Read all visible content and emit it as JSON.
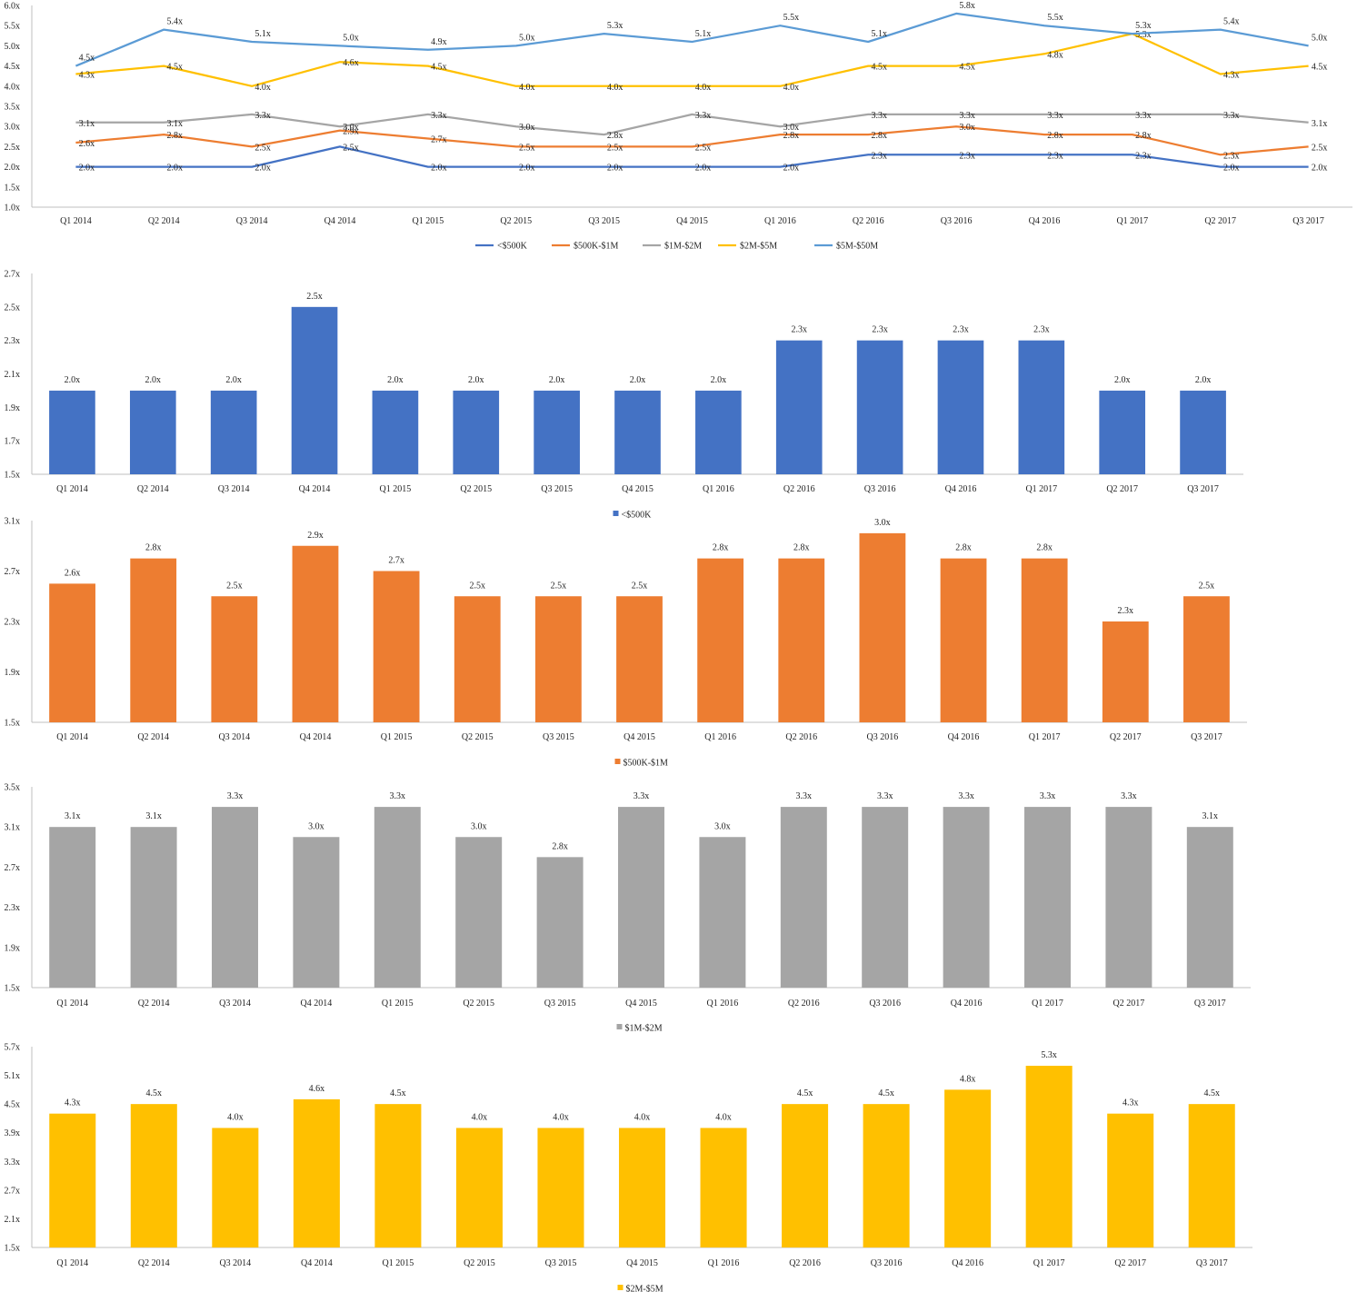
{
  "chart_data": [
    {
      "type": "line",
      "categories": [
        "Q1 2014",
        "Q2 2014",
        "Q3 2014",
        "Q4 2014",
        "Q1 2015",
        "Q2 2015",
        "Q3 2015",
        "Q4 2015",
        "Q1 2016",
        "Q2 2016",
        "Q3 2016",
        "Q4 2016",
        "Q1 2017",
        "Q2 2017",
        "Q3 2017"
      ],
      "ylim": [
        1.0,
        6.0
      ],
      "yticks": [
        1.0,
        1.5,
        2.0,
        2.5,
        3.0,
        3.5,
        4.0,
        4.5,
        5.0,
        5.5,
        6.0
      ],
      "tick_suffix": "x",
      "grid": false,
      "legend_position": "bottom",
      "series": [
        {
          "name": "<$500K",
          "color": "#4472C4",
          "values": [
            2.0,
            2.0,
            2.0,
            2.5,
            2.0,
            2.0,
            2.0,
            2.0,
            2.0,
            2.3,
            2.3,
            2.3,
            2.3,
            2.0,
            2.0
          ]
        },
        {
          "name": "$500K-$1M",
          "color": "#ED7D31",
          "values": [
            2.6,
            2.8,
            2.5,
            2.9,
            2.7,
            2.5,
            2.5,
            2.5,
            2.8,
            2.8,
            3.0,
            2.8,
            2.8,
            2.3,
            2.5
          ]
        },
        {
          "name": "$1M-$2M",
          "color": "#A5A5A5",
          "values": [
            3.1,
            3.1,
            3.3,
            3.0,
            3.3,
            3.0,
            2.8,
            3.3,
            3.0,
            3.3,
            3.3,
            3.3,
            3.3,
            3.3,
            3.1
          ]
        },
        {
          "name": "$2M-$5M",
          "color": "#FFC000",
          "values": [
            4.3,
            4.5,
            4.0,
            4.6,
            4.5,
            4.0,
            4.0,
            4.0,
            4.0,
            4.5,
            4.5,
            4.8,
            5.3,
            4.3,
            4.5
          ]
        },
        {
          "name": "$5M-$50M",
          "color": "#5B9BD5",
          "values": [
            4.5,
            5.4,
            5.1,
            5.0,
            4.9,
            5.0,
            5.3,
            5.1,
            5.5,
            5.1,
            5.8,
            5.5,
            5.3,
            5.4,
            5.0
          ]
        }
      ]
    },
    {
      "type": "bar",
      "categories": [
        "Q1 2014",
        "Q2 2014",
        "Q3 2014",
        "Q4 2014",
        "Q1 2015",
        "Q2 2015",
        "Q3 2015",
        "Q4 2015",
        "Q1 2016",
        "Q2 2016",
        "Q3 2016",
        "Q4 2016",
        "Q1 2017",
        "Q2 2017",
        "Q3 2017"
      ],
      "series": [
        {
          "name": "<$500K",
          "color": "#4472C4",
          "values": [
            2.0,
            2.0,
            2.0,
            2.5,
            2.0,
            2.0,
            2.0,
            2.0,
            2.0,
            2.3,
            2.3,
            2.3,
            2.3,
            2.0,
            2.0
          ]
        }
      ],
      "ylim": [
        1.5,
        2.7
      ],
      "yticks": [
        1.5,
        1.7,
        1.9,
        2.1,
        2.3,
        2.5,
        2.7
      ],
      "tick_suffix": "x",
      "legend_position": "bottom"
    },
    {
      "type": "bar",
      "categories": [
        "Q1 2014",
        "Q2 2014",
        "Q3 2014",
        "Q4 2014",
        "Q1 2015",
        "Q2 2015",
        "Q3 2015",
        "Q4 2015",
        "Q1 2016",
        "Q2 2016",
        "Q3 2016",
        "Q4 2016",
        "Q1 2017",
        "Q2 2017",
        "Q3 2017"
      ],
      "series": [
        {
          "name": "$500K-$1M",
          "color": "#ED7D31",
          "values": [
            2.6,
            2.8,
            2.5,
            2.9,
            2.7,
            2.5,
            2.5,
            2.5,
            2.8,
            2.8,
            3.0,
            2.8,
            2.8,
            2.3,
            2.5
          ]
        }
      ],
      "ylim": [
        1.5,
        3.1
      ],
      "yticks": [
        1.5,
        1.9,
        2.3,
        2.7,
        3.1
      ],
      "tick_suffix": "x",
      "legend_position": "bottom"
    },
    {
      "type": "bar",
      "categories": [
        "Q1 2014",
        "Q2 2014",
        "Q3 2014",
        "Q4 2014",
        "Q1 2015",
        "Q2 2015",
        "Q3 2015",
        "Q4 2015",
        "Q1 2016",
        "Q2 2016",
        "Q3 2016",
        "Q4 2016",
        "Q1 2017",
        "Q2 2017",
        "Q3 2017"
      ],
      "series": [
        {
          "name": "$1M-$2M",
          "color": "#A5A5A5",
          "values": [
            3.1,
            3.1,
            3.3,
            3.0,
            3.3,
            3.0,
            2.8,
            3.3,
            3.0,
            3.3,
            3.3,
            3.3,
            3.3,
            3.3,
            3.1
          ]
        }
      ],
      "ylim": [
        1.5,
        3.5
      ],
      "yticks": [
        1.5,
        1.9,
        2.3,
        2.7,
        3.1,
        3.5
      ],
      "tick_suffix": "x",
      "legend_position": "bottom"
    },
    {
      "type": "bar",
      "categories": [
        "Q1 2014",
        "Q2 2014",
        "Q3 2014",
        "Q4 2014",
        "Q1 2015",
        "Q2 2015",
        "Q3 2015",
        "Q4 2015",
        "Q1 2016",
        "Q2 2016",
        "Q3 2016",
        "Q4 2016",
        "Q1 2017",
        "Q2 2017",
        "Q3 2017"
      ],
      "series": [
        {
          "name": "$2M-$5M",
          "color": "#FFC000",
          "values": [
            4.3,
            4.5,
            4.0,
            4.6,
            4.5,
            4.0,
            4.0,
            4.0,
            4.0,
            4.5,
            4.5,
            4.8,
            5.3,
            4.3,
            4.5
          ]
        }
      ],
      "ylim": [
        1.5,
        5.7
      ],
      "yticks": [
        1.5,
        2.1,
        2.7,
        3.3,
        3.9,
        4.5,
        5.1,
        5.7
      ],
      "tick_suffix": "x",
      "legend_position": "bottom"
    }
  ]
}
